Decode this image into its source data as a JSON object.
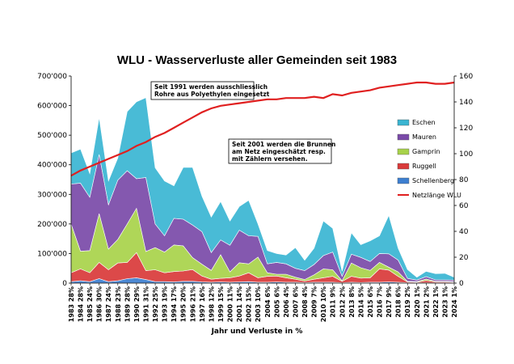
{
  "chart_data": {
    "type": "area",
    "title": "WLU - Wasserverluste aller Gemeinden seit 1983",
    "xlabel": "Jahr und Verluste in %",
    "ylabel": "",
    "y_left_lim": [
      0,
      700000
    ],
    "y_left_ticks": [
      "0",
      "100'000",
      "200'000",
      "300'000",
      "400'000",
      "500'000",
      "600'000",
      "700'000"
    ],
    "y_right_lim": [
      0,
      160
    ],
    "y_right_ticks": [
      "0",
      "20",
      "40",
      "60",
      "80",
      "100",
      "120",
      "140",
      "160"
    ],
    "categories": [
      "1983 28%",
      "1984 28%",
      "1985 24%",
      "1986 30%",
      "1987 24%",
      "1988 23%",
      "1989 28%",
      "1990 29%",
      "1991 31%",
      "1992 25%",
      "1993 19%",
      "1994 17%",
      "1995 20%",
      "1996 21%",
      "1997 16%",
      "1998 12%",
      "1999 15%",
      "2000 11%",
      "2001 14%",
      "2002 15%",
      "2003 10%",
      "2004 6%",
      "2005 6%",
      "2006 4%",
      "2007 6%",
      "2008 4%",
      "2009 7%",
      "2010 10%",
      "2011 9%",
      "2012 2%",
      "2013 8%",
      "2014 5%",
      "2015 6%",
      "2016 7%",
      "2017 9%",
      "2018 6%",
      "2019 2%",
      "2020 1%",
      "2021 2%",
      "2022 1%",
      "2023 1%",
      "2024 1%"
    ],
    "series": [
      {
        "name": "Schellenberg",
        "color": "#3d7fd0",
        "values": [
          5000,
          8000,
          5000,
          15000,
          5000,
          8000,
          15000,
          18000,
          12000,
          5000,
          5000,
          4000,
          6000,
          6000,
          4000,
          3000,
          4000,
          3000,
          4000,
          5000,
          3000,
          3000,
          4000,
          3000,
          3000,
          2000,
          3000,
          3000,
          3000,
          1000,
          3000,
          2000,
          3000,
          3000,
          4000,
          3000,
          1000,
          1000,
          1000,
          1000,
          1000,
          1000
        ]
      },
      {
        "name": "Ruggell",
        "color": "#d93a3a",
        "values": [
          30000,
          40000,
          30000,
          55000,
          40000,
          60000,
          55000,
          85000,
          30000,
          40000,
          30000,
          35000,
          35000,
          40000,
          20000,
          10000,
          12000,
          15000,
          20000,
          30000,
          15000,
          20000,
          20000,
          15000,
          10000,
          5000,
          10000,
          15000,
          20000,
          5000,
          20000,
          15000,
          15000,
          45000,
          40000,
          20000,
          3000,
          2000,
          8000,
          3000,
          3000,
          2000
        ]
      },
      {
        "name": "Gamprin",
        "color": "#a8d24a",
        "values": [
          165000,
          60000,
          75000,
          165000,
          70000,
          80000,
          130000,
          150000,
          65000,
          75000,
          70000,
          90000,
          85000,
          40000,
          40000,
          30000,
          80000,
          20000,
          45000,
          30000,
          70000,
          12000,
          6000,
          12000,
          7000,
          5000,
          15000,
          30000,
          22000,
          2000,
          45000,
          35000,
          25000,
          22000,
          10000,
          15000,
          2000,
          2000,
          5000,
          2000,
          2000,
          2000
        ]
      },
      {
        "name": "Mauren",
        "color": "#7a4aa8",
        "values": [
          135000,
          230000,
          180000,
          200000,
          150000,
          200000,
          180000,
          100000,
          250000,
          80000,
          55000,
          90000,
          90000,
          110000,
          110000,
          60000,
          50000,
          90000,
          110000,
          95000,
          70000,
          30000,
          40000,
          35000,
          30000,
          30000,
          35000,
          45000,
          60000,
          15000,
          30000,
          35000,
          30000,
          30000,
          45000,
          40000,
          10000,
          5000,
          8000,
          5000,
          5000,
          5000
        ]
      },
      {
        "name": "Eschen",
        "color": "#3ab5d2",
        "values": [
          105000,
          115000,
          80000,
          125000,
          80000,
          75000,
          200000,
          260000,
          270000,
          190000,
          185000,
          110000,
          175000,
          195000,
          120000,
          120000,
          130000,
          82000,
          80000,
          120000,
          42000,
          45000,
          30000,
          30000,
          70000,
          35000,
          55000,
          117000,
          80000,
          17000,
          72000,
          43000,
          70000,
          60000,
          130000,
          40000,
          30000,
          10000,
          18000,
          21000,
          22000,
          10000
        ]
      }
    ],
    "line": {
      "name": "Netzlänge WLU",
      "axis": "right",
      "color": "#e02020",
      "values": [
        83,
        87,
        90,
        93,
        96,
        99,
        102,
        106,
        109,
        113,
        116,
        120,
        124,
        128,
        132,
        135,
        137,
        138,
        139,
        140,
        141,
        142,
        142,
        143,
        143,
        143,
        144,
        143,
        146,
        145,
        147,
        148,
        149,
        151,
        152,
        153,
        154,
        155,
        155,
        154,
        154,
        155
      ]
    },
    "annotations": [
      {
        "lines": [
          "Seit 1991 werden ausschliesslich",
          "Rohre aus Polyethylen eingesetzt"
        ]
      },
      {
        "lines": [
          "Seit 2001 werden die Brunnen",
          "am Netz eingeschätzt resp.",
          "mit Zählern versehen."
        ]
      }
    ],
    "legend_position": "right",
    "grid": false
  }
}
